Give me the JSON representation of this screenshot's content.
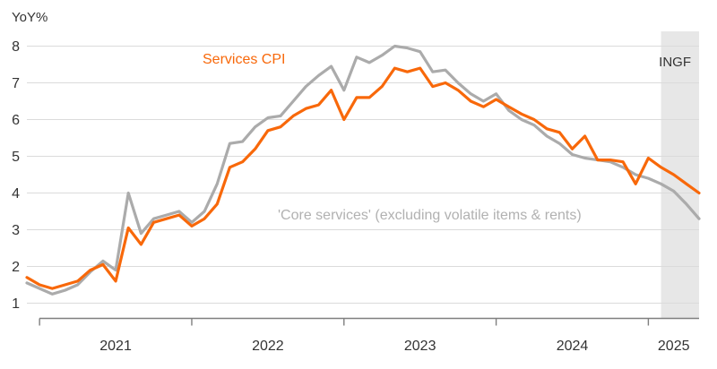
{
  "chart_data": {
    "type": "line",
    "title": "",
    "ylabel": "YoY%",
    "xlabel": "",
    "ylim": [
      1,
      8
    ],
    "grid": "horizontal",
    "legend_position": "inline-labels",
    "y_ticks": [
      1,
      2,
      3,
      4,
      5,
      6,
      7,
      8
    ],
    "x_ticks": [
      {
        "label": "2021",
        "month_index": 1
      },
      {
        "label": "2022",
        "month_index": 13
      },
      {
        "label": "2023",
        "month_index": 25
      },
      {
        "label": "2024",
        "month_index": 37
      },
      {
        "label": "2025",
        "month_index": 49
      }
    ],
    "months": [
      "2020-12",
      "2021-01",
      "2021-02",
      "2021-03",
      "2021-04",
      "2021-05",
      "2021-06",
      "2021-07",
      "2021-08",
      "2021-09",
      "2021-10",
      "2021-11",
      "2021-12",
      "2022-01",
      "2022-02",
      "2022-03",
      "2022-04",
      "2022-05",
      "2022-06",
      "2022-07",
      "2022-08",
      "2022-09",
      "2022-10",
      "2022-11",
      "2022-12",
      "2023-01",
      "2023-02",
      "2023-03",
      "2023-04",
      "2023-05",
      "2023-06",
      "2023-07",
      "2023-08",
      "2023-09",
      "2023-10",
      "2023-11",
      "2023-12",
      "2024-01",
      "2024-02",
      "2024-03",
      "2024-04",
      "2024-05",
      "2024-06",
      "2024-07",
      "2024-08",
      "2024-09",
      "2024-10",
      "2024-11",
      "2024-12",
      "2025-01",
      "2025-02",
      "2025-03",
      "2025-04",
      "2025-05"
    ],
    "series": [
      {
        "name": "Services CPI",
        "color": "#F8680A",
        "values": [
          1.7,
          1.5,
          1.4,
          1.5,
          1.6,
          1.9,
          2.05,
          1.6,
          3.05,
          2.6,
          3.2,
          3.3,
          3.4,
          3.1,
          3.3,
          3.7,
          4.7,
          4.85,
          5.2,
          5.7,
          5.8,
          6.1,
          6.3,
          6.4,
          6.8,
          6.0,
          6.6,
          6.6,
          6.9,
          7.4,
          7.3,
          7.4,
          6.9,
          7.0,
          6.8,
          6.5,
          6.35,
          6.55,
          6.35,
          6.15,
          6.0,
          5.75,
          5.65,
          5.2,
          5.55,
          4.9,
          4.9,
          4.85,
          4.25,
          4.95,
          4.7,
          4.5,
          4.25,
          4.0
        ]
      },
      {
        "name": "'Core services' (excluding volatile items & rents)",
        "color": "#ABABAB",
        "values": [
          1.55,
          1.4,
          1.25,
          1.35,
          1.5,
          1.85,
          2.15,
          1.9,
          4.0,
          2.9,
          3.3,
          3.4,
          3.5,
          3.2,
          3.5,
          4.25,
          5.35,
          5.4,
          5.8,
          6.05,
          6.1,
          6.5,
          6.9,
          7.2,
          7.45,
          6.8,
          7.7,
          7.55,
          7.75,
          8.0,
          7.95,
          7.85,
          7.3,
          7.35,
          7.0,
          6.7,
          6.5,
          6.7,
          6.25,
          6.0,
          5.85,
          5.55,
          5.35,
          5.05,
          4.95,
          4.9,
          4.85,
          4.7,
          4.5,
          4.4,
          4.25,
          4.05,
          3.7,
          3.3
        ]
      }
    ],
    "forecast": {
      "label": "INGF",
      "start_month": "2025-02",
      "start_index": 50
    },
    "colors": {
      "grid": "#DBDBDB",
      "axis": "#7F7F7F",
      "forecast_band": "#E7E7E7",
      "tick_text": "#333333"
    }
  }
}
